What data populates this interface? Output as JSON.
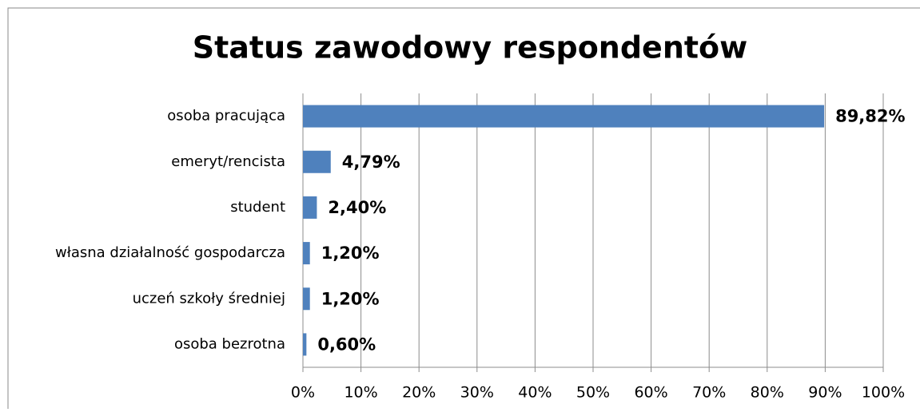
{
  "chart_data": {
    "type": "bar",
    "orientation": "horizontal",
    "title": "Status zawodowy respondentów",
    "categories": [
      "osoba pracująca",
      "emeryt/rencista",
      "student",
      "własna działalność gospodarcza",
      "uczeń szkoły średniej",
      "osoba bezrotna"
    ],
    "values": [
      89.82,
      4.79,
      2.4,
      1.2,
      1.2,
      0.6
    ],
    "value_labels": [
      "89,82%",
      "4,79%",
      "2,40%",
      "1,20%",
      "1,20%",
      "0,60%"
    ],
    "color": "#4f81bd",
    "xlim": [
      0,
      100
    ],
    "xticks": [
      {
        "value": 0,
        "label": "0%"
      },
      {
        "value": 10,
        "label": "10%"
      },
      {
        "value": 20,
        "label": "20%"
      },
      {
        "value": 30,
        "label": "30%"
      },
      {
        "value": 40,
        "label": "40%"
      },
      {
        "value": 50,
        "label": "50%"
      },
      {
        "value": 60,
        "label": "60%"
      },
      {
        "value": 70,
        "label": "70%"
      },
      {
        "value": 80,
        "label": "80%"
      },
      {
        "value": 90,
        "label": "90%"
      },
      {
        "value": 100,
        "label": "100%"
      }
    ],
    "grid": true
  }
}
